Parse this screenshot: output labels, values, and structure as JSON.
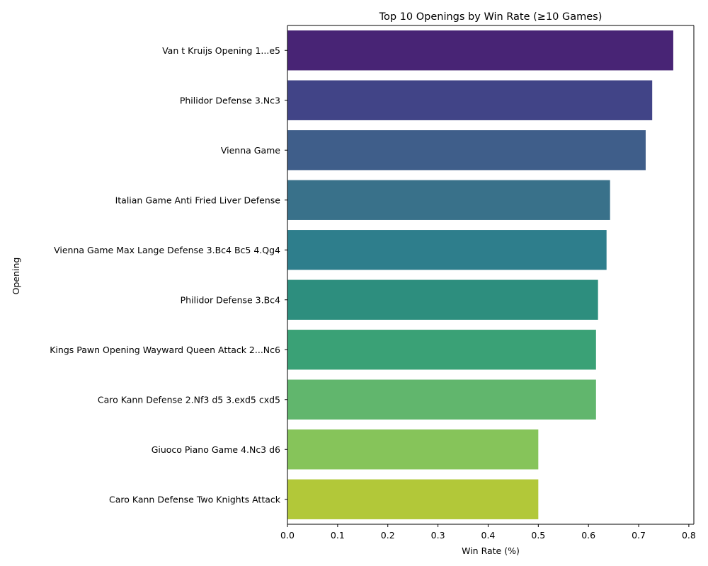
{
  "chart_data": {
    "type": "bar",
    "orientation": "horizontal",
    "title": "Top 10 Openings by Win Rate (≥10 Games)",
    "xlabel": "Win Rate (%)",
    "ylabel": "Opening",
    "xlim": [
      0,
      0.81
    ],
    "xticks": [
      0.0,
      0.1,
      0.2,
      0.3,
      0.4,
      0.5,
      0.6,
      0.7,
      0.8
    ],
    "xtick_labels": [
      "0.0",
      "0.1",
      "0.2",
      "0.3",
      "0.4",
      "0.5",
      "0.6",
      "0.7",
      "0.8"
    ],
    "grid": false,
    "categories": [
      "Van t Kruijs Opening 1...e5",
      "Philidor Defense 3.Nc3",
      "Vienna Game",
      "Italian Game Anti Fried Liver Defense",
      "Vienna Game Max Lange Defense 3.Bc4 Bc5 4.Qg4",
      "Philidor Defense 3.Bc4",
      "Kings Pawn Opening Wayward Queen Attack 2...Nc6",
      "Caro Kann Defense 2.Nf3 d5 3.exd5 cxd5",
      "Giuoco Piano Game 4.Nc3 d6",
      "Caro Kann Defense Two Knights Attack"
    ],
    "values": [
      0.769,
      0.727,
      0.714,
      0.643,
      0.636,
      0.619,
      0.615,
      0.615,
      0.5,
      0.5
    ],
    "colors": [
      "#482475",
      "#414487",
      "#3f5e8a",
      "#39718a",
      "#2e7e8c",
      "#2d8e7e",
      "#3aa176",
      "#61b66d",
      "#86c45a",
      "#b2c839"
    ]
  }
}
